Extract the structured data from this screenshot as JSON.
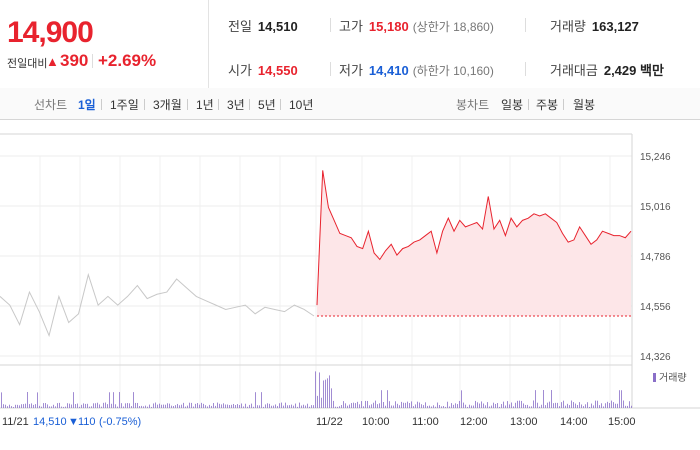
{
  "header": {
    "price": "14,900",
    "change_label": "전일대비",
    "change_arrow": "▲",
    "change_value": "390",
    "change_pct": "+2.69%",
    "stats": {
      "prev_close": {
        "label": "전일",
        "value": "14,510"
      },
      "high": {
        "label": "고가",
        "value": "15,180",
        "sub": "(상한가 18,860)"
      },
      "volume": {
        "label": "거래량",
        "value": "163,127"
      },
      "open": {
        "label": "시가",
        "value": "14,550"
      },
      "low": {
        "label": "저가",
        "value": "14,410",
        "sub": "(하한가 10,160)"
      },
      "trade_amount": {
        "label": "거래대금",
        "value": "2,429 백만"
      }
    }
  },
  "tabs": {
    "line_label": "선차트",
    "line_items": [
      "1일",
      "1주일",
      "3개월",
      "1년",
      "3년",
      "5년",
      "10년"
    ],
    "line_selected": "1일",
    "candle_label": "봉차트",
    "candle_items": [
      "일봉",
      "주봉",
      "월봉"
    ]
  },
  "chart_data": {
    "type": "line",
    "y_ticks": [
      "15,246",
      "15,016",
      "14,786",
      "14,556",
      "14,326"
    ],
    "ylim": [
      14326,
      15246
    ],
    "x_ticks": [
      "11/21",
      "11/22",
      "10:00",
      "11:00",
      "12:00",
      "13:00",
      "14:00",
      "15:00"
    ],
    "prev_day_note": {
      "value": "14,510",
      "arrow": "▼",
      "change": "110",
      "pct": "(-0.75%)"
    },
    "volume_legend": "거래량",
    "reference_line": 14510,
    "series": [
      {
        "values": [
          14600,
          14560,
          14470,
          14620,
          14530,
          14420,
          14600,
          14480,
          14520,
          14700,
          14560,
          14600,
          14560,
          14600,
          14650,
          14590,
          14610,
          14620,
          14680,
          14640,
          14600,
          14580,
          14560,
          14540,
          14550,
          14560,
          14520,
          14550,
          14540,
          14530,
          14560,
          14540,
          14510
        ]
      },
      {
        "values": [
          14560,
          15180,
          15010,
          14950,
          14890,
          14880,
          14870,
          14830,
          14820,
          14900,
          14800,
          14770,
          14810,
          14840,
          14790,
          14820,
          14830,
          14850,
          14860,
          14880,
          14900,
          14800,
          14900,
          14960,
          14900,
          14950,
          14920,
          14930,
          14940,
          14910,
          15060,
          14910,
          14950,
          14880,
          14960,
          14920,
          14950,
          14960,
          14980,
          14970,
          14980,
          14960,
          14940,
          14890,
          14850,
          14860,
          14920,
          14880,
          14840,
          14860,
          14900,
          14890,
          14880,
          14880,
          14870,
          14900
        ]
      }
    ]
  }
}
